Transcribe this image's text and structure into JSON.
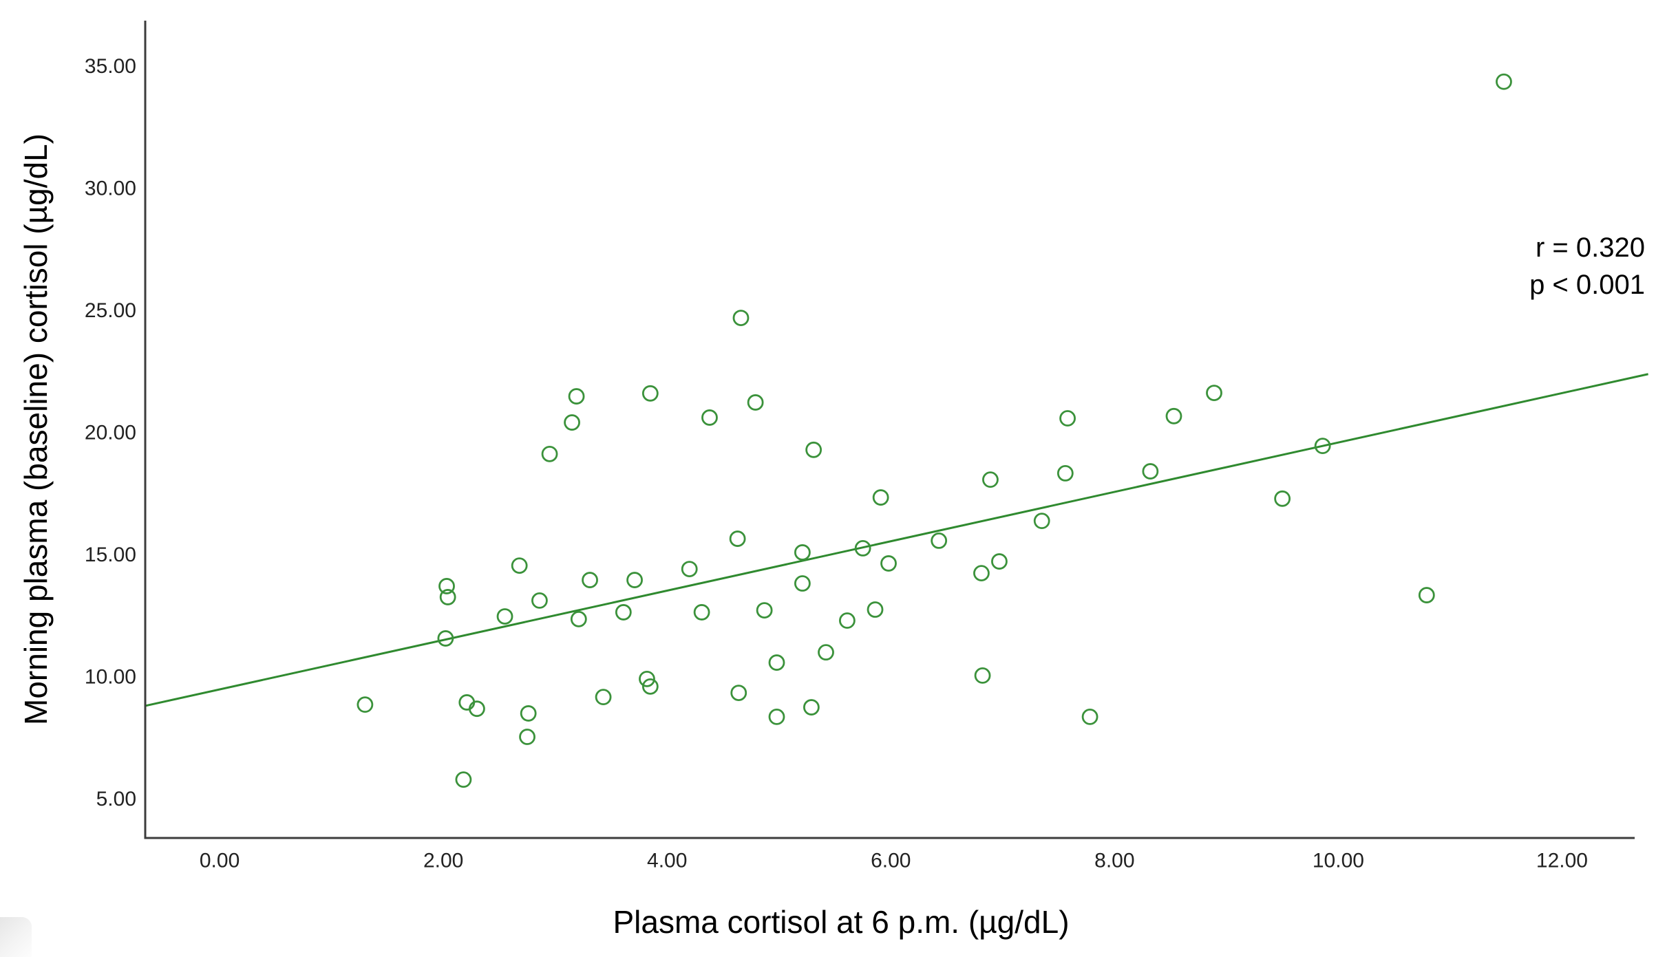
{
  "chart_data": {
    "type": "scatter",
    "title": "",
    "xlabel": "Plasma cortisol at 6 p.m. (µg/dL)",
    "ylabel": "Morning plasma (baseline) cortisol (µg/dL)",
    "annotation": {
      "r_label": "r = 0.320",
      "p_label": "p < 0.001"
    },
    "xlim": [
      -0.665,
      12.84
    ],
    "ylim": [
      3.41,
      36.87
    ],
    "x_ticks": {
      "values": [
        0,
        2,
        4,
        6,
        8,
        10,
        12
      ],
      "labels": [
        "0.00",
        "2.00",
        "4.00",
        "6.00",
        "8.00",
        "10.00",
        "12.00"
      ]
    },
    "y_ticks": {
      "values": [
        5,
        10,
        15,
        20,
        25,
        30,
        35
      ],
      "labels": [
        "5.00",
        "10.00",
        "15.00",
        "20.00",
        "25.00",
        "30.00",
        "35.00"
      ]
    },
    "grid": false,
    "legend": "none",
    "marker": {
      "shape": "open-circle",
      "radius_px": 10.5,
      "stroke_px": 2.8
    },
    "colors": {
      "series": "#3b923b",
      "trend": "#2f8a2f",
      "axis": "#3c3c3c",
      "title_text": "#000000",
      "tick_text": "#222222"
    },
    "trend_line": {
      "x1": -0.665,
      "y1": 8.82,
      "x2": 12.77,
      "y2": 22.4
    },
    "points": [
      [
        11.48,
        34.37
      ],
      [
        4.66,
        24.7
      ],
      [
        3.19,
        21.49
      ],
      [
        3.85,
        21.61
      ],
      [
        4.79,
        21.24
      ],
      [
        3.15,
        20.42
      ],
      [
        4.38,
        20.62
      ],
      [
        2.95,
        19.13
      ],
      [
        5.31,
        19.3
      ],
      [
        5.91,
        17.35
      ],
      [
        7.58,
        20.59
      ],
      [
        8.53,
        20.68
      ],
      [
        8.89,
        21.63
      ],
      [
        6.89,
        18.08
      ],
      [
        7.56,
        18.34
      ],
      [
        8.32,
        18.42
      ],
      [
        9.86,
        19.46
      ],
      [
        9.5,
        17.3
      ],
      [
        7.35,
        16.39
      ],
      [
        6.43,
        15.58
      ],
      [
        5.98,
        14.65
      ],
      [
        6.81,
        14.25
      ],
      [
        6.97,
        14.73
      ],
      [
        6.82,
        10.06
      ],
      [
        7.78,
        8.37
      ],
      [
        10.79,
        13.35
      ],
      [
        2.68,
        14.56
      ],
      [
        2.03,
        13.72
      ],
      [
        2.04,
        13.27
      ],
      [
        2.55,
        12.48
      ],
      [
        2.86,
        13.13
      ],
      [
        2.02,
        11.58
      ],
      [
        1.3,
        8.87
      ],
      [
        2.21,
        8.96
      ],
      [
        2.3,
        8.7
      ],
      [
        2.76,
        8.51
      ],
      [
        2.75,
        7.55
      ],
      [
        2.18,
        5.8
      ],
      [
        4.63,
        15.66
      ],
      [
        5.21,
        15.1
      ],
      [
        5.75,
        15.27
      ],
      [
        4.2,
        14.42
      ],
      [
        3.31,
        13.97
      ],
      [
        3.71,
        13.97
      ],
      [
        5.21,
        13.83
      ],
      [
        3.21,
        12.37
      ],
      [
        3.61,
        12.65
      ],
      [
        4.31,
        12.65
      ],
      [
        4.87,
        12.73
      ],
      [
        5.61,
        12.31
      ],
      [
        5.86,
        12.76
      ],
      [
        4.98,
        10.59
      ],
      [
        5.42,
        11.01
      ],
      [
        3.43,
        9.18
      ],
      [
        3.82,
        9.92
      ],
      [
        3.85,
        9.61
      ],
      [
        4.64,
        9.35
      ],
      [
        4.98,
        8.37
      ],
      [
        5.29,
        8.76
      ]
    ]
  }
}
